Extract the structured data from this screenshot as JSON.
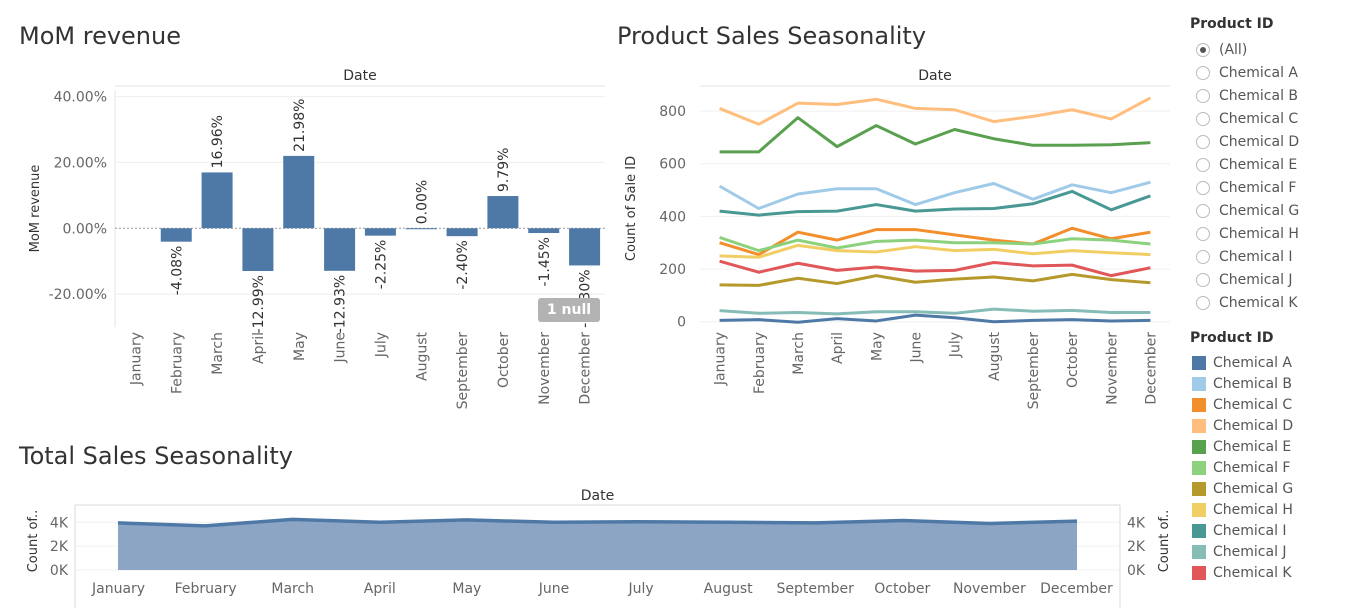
{
  "titles": {
    "mom": "MoM revenue",
    "product": "Product Sales Seasonality",
    "total": "Total Sales Seasonality"
  },
  "null_badge": "1 null",
  "filter": {
    "title": "Product ID",
    "options": [
      "(All)",
      "Chemical A",
      "Chemical B",
      "Chemical C",
      "Chemical D",
      "Chemical E",
      "Chemical F",
      "Chemical G",
      "Chemical H",
      "Chemical I",
      "Chemical J",
      "Chemical K"
    ],
    "selected": "(All)"
  },
  "legend": {
    "title": "Product ID",
    "items": [
      {
        "name": "Chemical A",
        "color": "#4e79a7"
      },
      {
        "name": "Chemical B",
        "color": "#a0cbe8"
      },
      {
        "name": "Chemical C",
        "color": "#f28e2b"
      },
      {
        "name": "Chemical D",
        "color": "#ffbe7d"
      },
      {
        "name": "Chemical E",
        "color": "#59a14f"
      },
      {
        "name": "Chemical F",
        "color": "#8cd17d"
      },
      {
        "name": "Chemical G",
        "color": "#b6992d"
      },
      {
        "name": "Chemical H",
        "color": "#f1ce63"
      },
      {
        "name": "Chemical I",
        "color": "#499894"
      },
      {
        "name": "Chemical J",
        "color": "#86bcb6"
      },
      {
        "name": "Chemical K",
        "color": "#e15759"
      }
    ]
  },
  "chart_data": [
    {
      "type": "bar",
      "title": "MoM revenue",
      "header": "Date",
      "ylabel": "MoM revenue",
      "ylim": [
        -0.3,
        0.42
      ],
      "yticks": [
        0.4,
        0.2,
        0.0,
        -0.2
      ],
      "ytick_labels": [
        "40.00%",
        "20.00%",
        "0.00%",
        "-20.00%"
      ],
      "categories": [
        "January",
        "February",
        "March",
        "April",
        "May",
        "June",
        "July",
        "August",
        "September",
        "October",
        "November",
        "December"
      ],
      "values": [
        null,
        -0.0408,
        0.1696,
        -0.1299,
        0.2198,
        -0.1293,
        -0.0225,
        0.0,
        -0.024,
        0.0979,
        -0.0145,
        -0.113
      ],
      "labels": [
        "",
        "-4.08%",
        "16.96%",
        "-12.99%",
        "21.98%",
        "-12.93%",
        "-2.25%",
        "0.00%",
        "-2.40%",
        "9.79%",
        "-1.45%",
        "-11.30%"
      ],
      "color": "#4e79a7"
    },
    {
      "type": "line",
      "title": "Product Sales Seasonality",
      "header": "Date",
      "ylabel": "Count of Sale ID",
      "ylim": [
        -20,
        880
      ],
      "yticks": [
        0,
        200,
        400,
        600,
        800
      ],
      "categories": [
        "January",
        "February",
        "March",
        "April",
        "May",
        "June",
        "July",
        "August",
        "September",
        "October",
        "November",
        "December"
      ],
      "series": [
        {
          "name": "Chemical A",
          "color": "#4e79a7",
          "values": [
            5,
            8,
            -2,
            12,
            3,
            25,
            15,
            0,
            5,
            8,
            3,
            5
          ]
        },
        {
          "name": "Chemical B",
          "color": "#a0cbe8",
          "values": [
            515,
            430,
            485,
            505,
            505,
            445,
            490,
            525,
            465,
            520,
            490,
            530
          ]
        },
        {
          "name": "Chemical C",
          "color": "#f28e2b",
          "values": [
            300,
            255,
            340,
            310,
            350,
            350,
            330,
            310,
            295,
            355,
            315,
            340
          ]
        },
        {
          "name": "Chemical D",
          "color": "#ffbe7d",
          "values": [
            810,
            750,
            830,
            825,
            845,
            810,
            805,
            760,
            780,
            805,
            770,
            850
          ]
        },
        {
          "name": "Chemical E",
          "color": "#59a14f",
          "values": [
            645,
            645,
            775,
            665,
            745,
            675,
            730,
            695,
            670,
            670,
            672,
            680
          ]
        },
        {
          "name": "Chemical F",
          "color": "#8cd17d",
          "values": [
            320,
            270,
            310,
            280,
            305,
            310,
            300,
            300,
            295,
            315,
            310,
            295
          ]
        },
        {
          "name": "Chemical G",
          "color": "#b6992d",
          "values": [
            140,
            138,
            165,
            145,
            175,
            150,
            162,
            170,
            155,
            180,
            160,
            148
          ]
        },
        {
          "name": "Chemical H",
          "color": "#f1ce63",
          "values": [
            250,
            245,
            290,
            270,
            265,
            285,
            270,
            275,
            258,
            270,
            262,
            255
          ]
        },
        {
          "name": "Chemical I",
          "color": "#499894",
          "values": [
            420,
            405,
            418,
            420,
            445,
            420,
            428,
            430,
            448,
            495,
            425,
            478
          ]
        },
        {
          "name": "Chemical J",
          "color": "#86bcb6",
          "values": [
            42,
            32,
            35,
            30,
            38,
            38,
            32,
            48,
            40,
            43,
            35,
            35
          ]
        },
        {
          "name": "Chemical K",
          "color": "#e15759",
          "values": [
            230,
            188,
            222,
            195,
            208,
            192,
            195,
            225,
            212,
            215,
            175,
            205
          ]
        }
      ]
    },
    {
      "type": "area",
      "title": "Total Sales Seasonality",
      "header": "Date",
      "ylabel": "Count of..",
      "ylim": [
        0,
        5200
      ],
      "yticks": [
        0,
        2000,
        4000
      ],
      "ytick_labels": [
        "0K",
        "2K",
        "4K"
      ],
      "categories": [
        "January",
        "February",
        "March",
        "April",
        "May",
        "June",
        "July",
        "August",
        "September",
        "October",
        "November",
        "December"
      ],
      "values": [
        3950,
        3700,
        4250,
        4000,
        4200,
        4000,
        4050,
        4000,
        3950,
        4150,
        3900,
        4100
      ],
      "color": "#4e79a7"
    }
  ]
}
